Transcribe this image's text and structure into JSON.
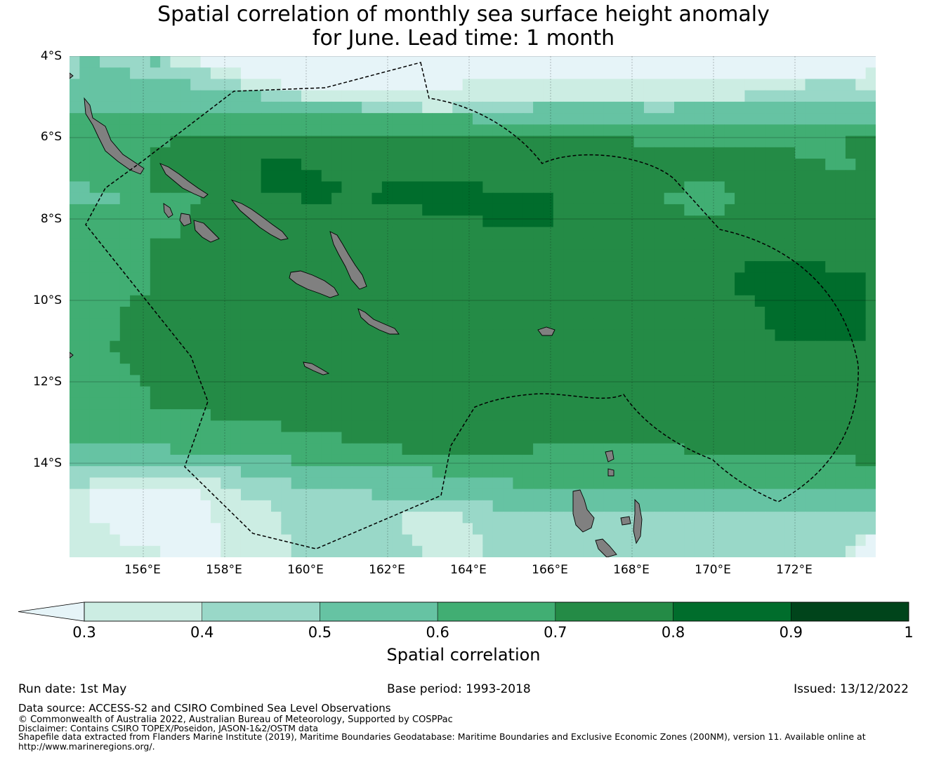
{
  "title": {
    "line1": "Spatial correlation of monthly sea surface height anomaly",
    "line2": "for June. Lead time: 1 month"
  },
  "map": {
    "lat_ticks": [
      "4°S",
      "6°S",
      "8°S",
      "10°S",
      "12°S",
      "14°S"
    ],
    "lon_ticks": [
      "156°E",
      "158°E",
      "160°E",
      "162°E",
      "164°E",
      "166°E",
      "168°E",
      "170°E",
      "172°E"
    ],
    "lat_range": [
      -16.3,
      -4.0
    ],
    "lon_range": [
      154.2,
      174.0
    ],
    "land_color": "#808080",
    "eez_boundary": "dashed black outline (Solomon Islands EEZ)",
    "correlation_grid_rows": [
      "23322222321110000000000000000000000000000000000000000000000000000000000000000000",
      "23333322222222111000000000000000000000000000000000000000000000000000000000000001",
      "33333333333322222111100000000000000000011111111111111111111111111111111112222211",
      "33333333333333333332222111111111111111111111111111111111111111111112222222222222",
      "33333333333333333333333333333222222111222222223333333333322233333333333333333333",
      "44444444444444444444444444444444444444443333333333333333333333333333333333333333",
      "44444444444444444444444444444444444444444444444444444444444444444444444444444444",
      "44444444445555555555555555555555555555555555555555555555444444444444444444444555",
      "44444444555555555555555555555555555555555555555555555555555555555555555544444555",
      "44444444555555555556666555555555555555555555555555555555555555555555555555544455",
      "44444444555555555556666665555555555555555555555555555555555555555555555555555555",
      "33444444555555555556666666655556666666666555555555555555555554444555555555555555",
      "33333444444445555555555666555566666666666666666655555555555444444455555555555555",
      "44444444444455555555555555555555555666666666666655555555555554444555555555555555",
      "44444444444555555555555555555555555555555666666655555555555555555555555555555555",
      "44444444444555555555555555555555555555555555555555555555555555555555555555555555",
      "44444444555555555555555555555555555555555555555555555555555555555555555555555555",
      "44444444555555555555555555555555555555555555555555555555555555555555555555555555",
      "44444444555555555555555555555555555555555555555555555555555555555556666666655555",
      "44444444555555555555555555555555555555555555555555555555555555555566666666666665",
      "44444444555555555555555555555555555555555555555555555555555555555566666666666665",
      "44444455555555555555555555555555555555555555555555555555555555555555666666666665",
      "44444555555555555555555555555555555555555555555555555555555555555555566666666665",
      "44444555555555555555555555555555555555555555555555555555555555555555566666666665",
      "44444555555555555555555555555555555555555555555555555555555555555555556666666665",
      "44445555555555555555555555555555555555555555555555555555555555555555555555555555",
      "44444555555555555555555555555555555555555555555555555555555555555555555555555555",
      "44444455555555555555555555555555555555555555555555555555555555555555555555555555",
      "44444445555555555555555555555555555555555555555555555555555555555555555555555555",
      "44444444555555555555555555555555555555555555555555555555555555555555555555555555",
      "44444444555555555555555555555555555555555555555555555555555555555555555555555555",
      "44444444444444555555555555555555555555555555555555555555555555555555555555555555",
      "44444444444444444444455555555555555555555555555555555555555555555555555555555555",
      "44444444444444444444444444455555555555555555555555555555555555555555555555555555",
      "33333333334444444444444444444444455555555555554444444444444445555555555555555555",
      "33333333333333333333334444444444444444444444444444444444444444444444444444444455",
      "22222222222222222333333333333333333344444444444444444444444444444444444444444444",
      "22111111111111122222223333333333333333333333444444444444444444444444444444444444",
      "11000000000001111222222222222233333333333333333333333333333333333333333333333333",
      "11000000000000111111222222222222222222222233333333333333333333333333333333333333",
      "11000000000000111111122222222222211111122222222222222222222222222222222222222222",
      "11110000000000011111122222222222211111112222222222222222222222222222222222222222",
      "11111000000000011111112222222222221111111222222222222222222222222222222222222210",
      "11111111100000011111112222222222222111111222222222222222222222222222222222222100"
    ]
  },
  "colorbar": {
    "colors": [
      "#e6f4f8",
      "#ccede3",
      "#99d8c8",
      "#66c3a3",
      "#41ae73",
      "#248b46",
      "#006d2c",
      "#00441b"
    ],
    "tick_labels": [
      "0.3",
      "0.4",
      "0.5",
      "0.6",
      "0.7",
      "0.8",
      "0.9",
      "1"
    ],
    "title": "Spatial correlation"
  },
  "footer": {
    "run_date": "Run date: 1st May",
    "base_period": "Base period: 1993-2018",
    "issued": "Issued: 13/12/2022",
    "data_source": "Data source: ACCESS-S2 and CSIRO Combined Sea Level Observations",
    "copyright": "© Commonwealth of Australia 2022, Australian Bureau of Meteorology, Supported by COSPPac",
    "disclaimer": "Disclaimer: Contains CSIRO TOPEX/Poseidon, JASON-1&2/OSTM data",
    "shapefile": "Shapefile data extracted from Flanders Marine Institute (2019), Maritime Boundaries Geodatabase: Maritime Boundaries and Exclusive Economic Zones (200NM), version 11. Available online at",
    "url": "http://www.marineregions.org/."
  }
}
